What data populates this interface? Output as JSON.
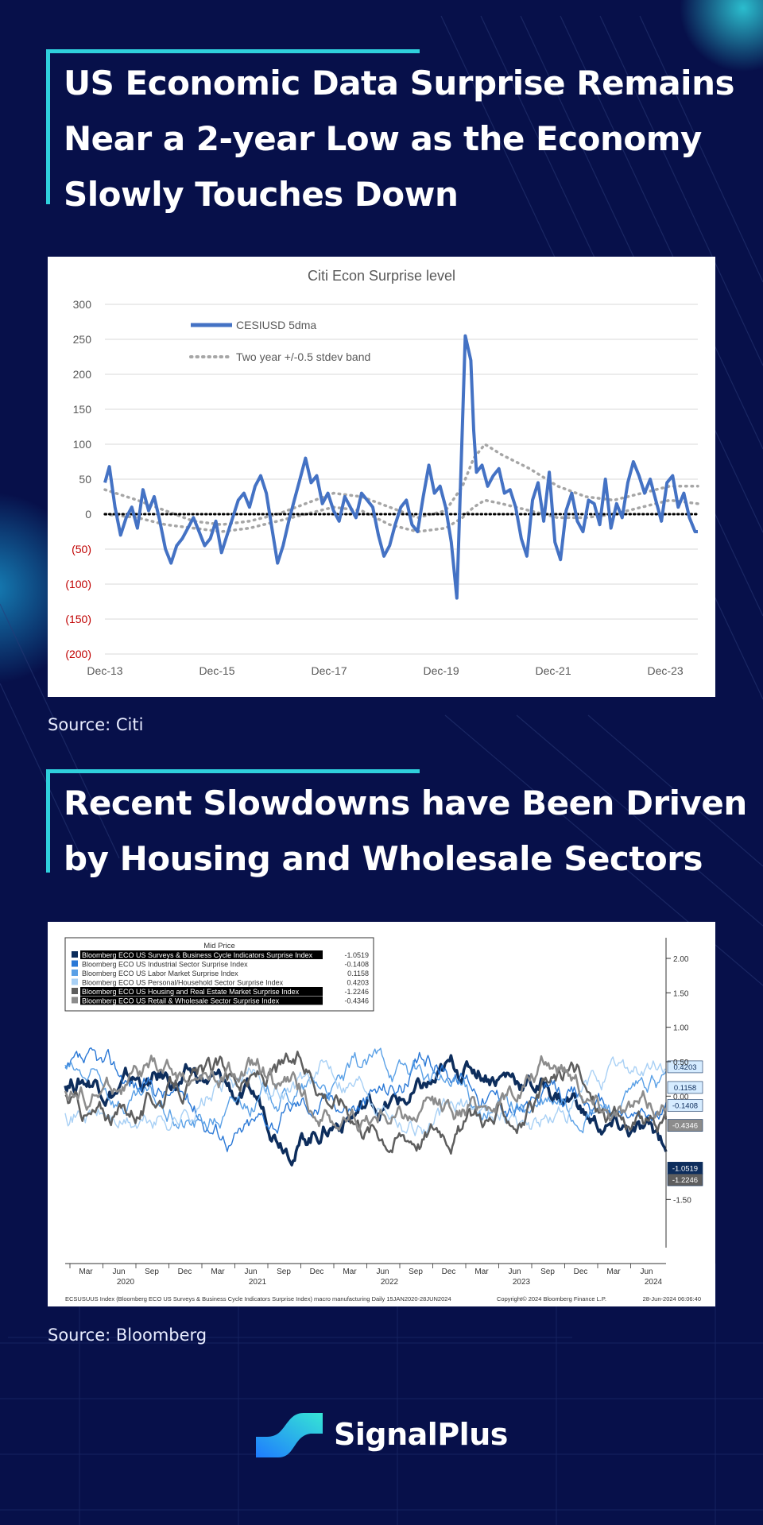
{
  "section1": {
    "title_lines": [
      "US Economic Data Surprise Remains",
      "Near a 2-year Low as the Economy",
      "Slowly Touches Down"
    ],
    "source": "Source: Citi"
  },
  "section2": {
    "title_lines": [
      "Recent Slowdowns have Been Driven",
      "by Housing and Wholesale Sectors"
    ],
    "source": "Source: Bloomberg"
  },
  "brand": {
    "name": "SignalPlus",
    "accent": "#2fd0dc",
    "background": "#07104a"
  },
  "chart_data": [
    {
      "type": "line",
      "title": "Citi Econ Surprise level",
      "x_ticks": [
        "Dec-13",
        "Dec-15",
        "Dec-17",
        "Dec-19",
        "Dec-21",
        "Dec-23"
      ],
      "y_ticks": [
        "300",
        "250",
        "200",
        "150",
        "100",
        "50",
        "0",
        "(50)",
        "(100)",
        "(150)",
        "(200)"
      ],
      "ylim": [
        -200,
        300
      ],
      "xlim": [
        2013.92,
        2024.5
      ],
      "grid": true,
      "legend": [
        "CESIUSD 5dma",
        "Two year +/-0.5 stdev band"
      ],
      "colors": {
        "main": "#4472c4",
        "band": "#a6a6a6",
        "negative_tick": "#c00000"
      },
      "series": [
        {
          "name": "CESIUSD 5dma",
          "x": [
            2013.92,
            2014.0,
            2014.1,
            2014.2,
            2014.3,
            2014.4,
            2014.5,
            2014.6,
            2014.7,
            2014.8,
            2014.9,
            2015.0,
            2015.1,
            2015.2,
            2015.3,
            2015.4,
            2015.5,
            2015.6,
            2015.7,
            2015.8,
            2015.9,
            2016.0,
            2016.1,
            2016.2,
            2016.3,
            2016.4,
            2016.5,
            2016.6,
            2016.7,
            2016.8,
            2016.9,
            2017.0,
            2017.1,
            2017.2,
            2017.3,
            2017.4,
            2017.5,
            2017.6,
            2017.7,
            2017.8,
            2017.9,
            2018.0,
            2018.1,
            2018.2,
            2018.3,
            2018.4,
            2018.5,
            2018.6,
            2018.7,
            2018.8,
            2018.9,
            2019.0,
            2019.1,
            2019.2,
            2019.3,
            2019.4,
            2019.5,
            2019.6,
            2019.7,
            2019.8,
            2019.9,
            2020.0,
            2020.1,
            2020.2,
            2020.3,
            2020.35,
            2020.45,
            2020.5,
            2020.55,
            2020.65,
            2020.75,
            2020.85,
            2020.95,
            2021.05,
            2021.15,
            2021.25,
            2021.35,
            2021.45,
            2021.55,
            2021.65,
            2021.75,
            2021.85,
            2021.95,
            2022.05,
            2022.15,
            2022.25,
            2022.35,
            2022.45,
            2022.55,
            2022.65,
            2022.75,
            2022.85,
            2022.95,
            2023.05,
            2023.15,
            2023.25,
            2023.35,
            2023.45,
            2023.55,
            2023.65,
            2023.75,
            2023.85,
            2023.95,
            2024.05,
            2024.15,
            2024.25,
            2024.35,
            2024.45,
            2024.5
          ],
          "values": [
            45,
            68,
            10,
            -30,
            -5,
            10,
            -20,
            35,
            5,
            25,
            -10,
            -50,
            -70,
            -45,
            -35,
            -20,
            -5,
            -25,
            -45,
            -35,
            -10,
            -55,
            -30,
            -5,
            20,
            30,
            10,
            40,
            55,
            30,
            -20,
            -70,
            -45,
            -10,
            20,
            50,
            80,
            45,
            55,
            15,
            30,
            5,
            -10,
            25,
            10,
            -5,
            30,
            20,
            10,
            -30,
            -60,
            -45,
            -15,
            10,
            20,
            -15,
            -25,
            25,
            70,
            30,
            40,
            10,
            -40,
            -120,
            130,
            255,
            220,
            120,
            60,
            70,
            40,
            55,
            65,
            30,
            35,
            10,
            -35,
            -60,
            20,
            45,
            -10,
            60,
            -40,
            -65,
            5,
            30,
            -10,
            -25,
            20,
            15,
            -15,
            50,
            -20,
            15,
            -5,
            45,
            75,
            55,
            30,
            50,
            20,
            -10,
            45,
            55,
            10,
            30,
            -5,
            -25,
            -25
          ]
        },
        {
          "name": "Two year +/-0.5 stdev band (upper)",
          "x": [
            2013.92,
            2014.5,
            2015.0,
            2015.5,
            2016.0,
            2016.5,
            2017.0,
            2017.5,
            2018.0,
            2018.5,
            2019.0,
            2019.5,
            2020.0,
            2020.3,
            2020.5,
            2020.7,
            2021.0,
            2021.5,
            2022.0,
            2022.5,
            2023.0,
            2023.5,
            2024.0,
            2024.5
          ],
          "values": [
            35,
            20,
            5,
            -10,
            -15,
            -10,
            0,
            15,
            30,
            25,
            10,
            -5,
            5,
            40,
            80,
            100,
            85,
            65,
            40,
            25,
            20,
            30,
            40,
            40
          ]
        },
        {
          "name": "Two year +/-0.5 stdev band (lower)",
          "x": [
            2013.92,
            2014.5,
            2015.0,
            2015.5,
            2016.0,
            2016.5,
            2017.0,
            2017.5,
            2018.0,
            2018.5,
            2019.0,
            2019.5,
            2020.0,
            2020.3,
            2020.5,
            2020.7,
            2021.0,
            2021.5,
            2022.0,
            2022.5,
            2023.0,
            2023.5,
            2024.0,
            2024.5
          ],
          "values": [
            0,
            -5,
            -15,
            -20,
            -25,
            -20,
            -10,
            0,
            10,
            5,
            -15,
            -25,
            -20,
            -5,
            10,
            20,
            15,
            5,
            -5,
            -5,
            0,
            10,
            20,
            15
          ]
        }
      ]
    },
    {
      "type": "line",
      "title": "Mid Price",
      "x_months": [
        "Mar",
        "Jun",
        "Sep",
        "Dec",
        "Mar",
        "Jun",
        "Sep",
        "Dec",
        "Mar",
        "Jun",
        "Sep",
        "Dec",
        "Mar",
        "Jun",
        "Sep",
        "Dec",
        "Mar",
        "Jun"
      ],
      "x_years": [
        "2020",
        "2021",
        "2022",
        "2023",
        "2024"
      ],
      "y_ticks": [
        "2.00",
        "1.50",
        "1.00",
        "0.50",
        "0.00",
        "-1.50"
      ],
      "ylim": [
        -2.2,
        2.3
      ],
      "footer_left": "ECSUSUUS Index (Bloomberg ECO US Surveys & Business Cycle Indicators Surprise Index) macro manufacturing  Daily 15JAN2020-28JUN2024",
      "footer_mid": "Copyright© 2024 Bloomberg Finance L.P.",
      "footer_right": "28-Jun-2024 06:06:40",
      "series": [
        {
          "name": "Bloomberg ECO US Surveys & Business Cycle Indicators Surprise Index",
          "last": "-1.0519",
          "color": "#0d2d5c",
          "highlight": true,
          "seed": 1,
          "end": -1.05
        },
        {
          "name": "Bloomberg ECO US Industrial Sector Surprise Index",
          "last": "-0.1408",
          "color": "#2a78d6",
          "highlight": false,
          "seed": 2,
          "end": -0.14
        },
        {
          "name": "Bloomberg ECO US Labor Market Surprise Index",
          "last": "0.1158",
          "color": "#5aa0e6",
          "highlight": false,
          "seed": 3,
          "end": 0.12
        },
        {
          "name": "Bloomberg ECO US Personal/Household Sector Surprise Index",
          "last": "0.4203",
          "color": "#a8d0f5",
          "highlight": false,
          "seed": 4,
          "end": 0.42
        },
        {
          "name": "Bloomberg ECO US Housing and Real Estate Market Surprise Index",
          "last": "-1.2246",
          "color": "#5e5e5e",
          "highlight": true,
          "seed": 5,
          "end": -1.22
        },
        {
          "name": "Bloomberg ECO US Retail & Wholesale Sector Surprise Index",
          "last": "-0.4346",
          "color": "#8c8c8c",
          "highlight": true,
          "seed": 6,
          "end": -0.43
        }
      ]
    }
  ]
}
